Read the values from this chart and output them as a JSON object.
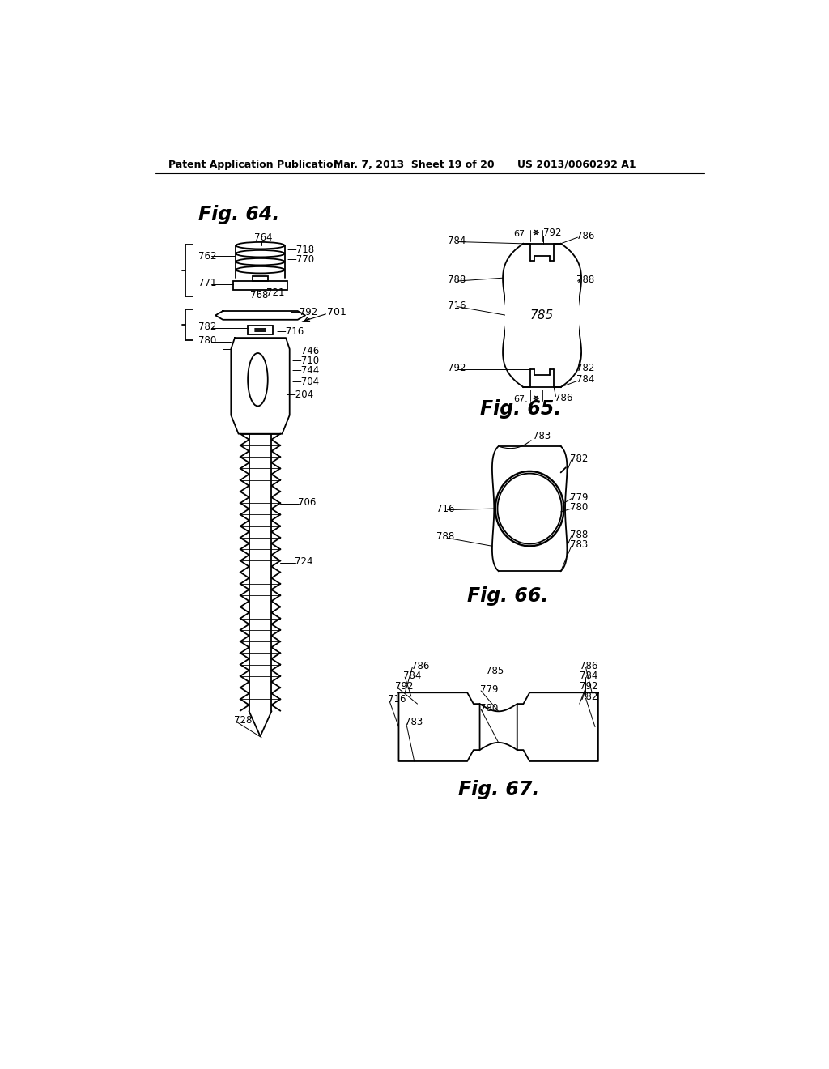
{
  "background_color": "#ffffff",
  "header_left": "Patent Application Publication",
  "header_center": "Mar. 7, 2013  Sheet 19 of 20",
  "header_right": "US 2013/0060292 A1",
  "fig64_title": "Fig. 64.",
  "fig65_title": "Fig. 65.",
  "fig66_title": "Fig. 66.",
  "fig67_title": "Fig. 67.",
  "line_color": "#000000",
  "text_color": "#000000"
}
